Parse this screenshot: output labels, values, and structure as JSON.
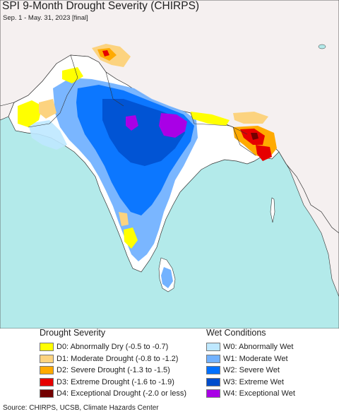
{
  "title": "SPI 9-Month Drought Severity (CHIRPS)",
  "subtitle": "Sep. 1 - May. 31, 2023 [final]",
  "colors": {
    "ocean": "#b3eaea",
    "land": "#ffffff",
    "outside_land": "#f5f0f0",
    "D0": "#ffff00",
    "D1": "#fcd37f",
    "D2": "#ffaa00",
    "D3": "#e60000",
    "D4": "#730000",
    "W0": "#bee8ff",
    "W1": "#73b2ff",
    "W2": "#0070ff",
    "W3": "#004dcc",
    "W4": "#a900e6"
  },
  "legend": {
    "drought": {
      "title": "Drought Severity",
      "items": [
        {
          "label": "D0: Abnormally Dry (-0.5 to -0.7)",
          "color": "#ffff00"
        },
        {
          "label": "D1: Moderate Drought (-0.8 to -1.2)",
          "color": "#fcd37f"
        },
        {
          "label": "D2: Severe Drought (-1.3 to -1.5)",
          "color": "#ffaa00"
        },
        {
          "label": "D3: Extreme Drought (-1.6 to -1.9)",
          "color": "#e60000"
        },
        {
          "label": "D4: Exceptional Drought (-2.0 or less)",
          "color": "#730000"
        }
      ]
    },
    "wet": {
      "title": "Wet Conditions",
      "items": [
        {
          "label": "W0: Abnormally Wet",
          "color": "#bee8ff"
        },
        {
          "label": "W1: Moderate Wet",
          "color": "#73b2ff"
        },
        {
          "label": "W2: Severe Wet",
          "color": "#0070ff"
        },
        {
          "label": "W3: Extreme Wet",
          "color": "#004dcc"
        },
        {
          "label": "W4: Exceptional Wet",
          "color": "#a900e6"
        }
      ]
    }
  },
  "source": "Source: CHIRPS, UCSB, Climate Hazards Center"
}
